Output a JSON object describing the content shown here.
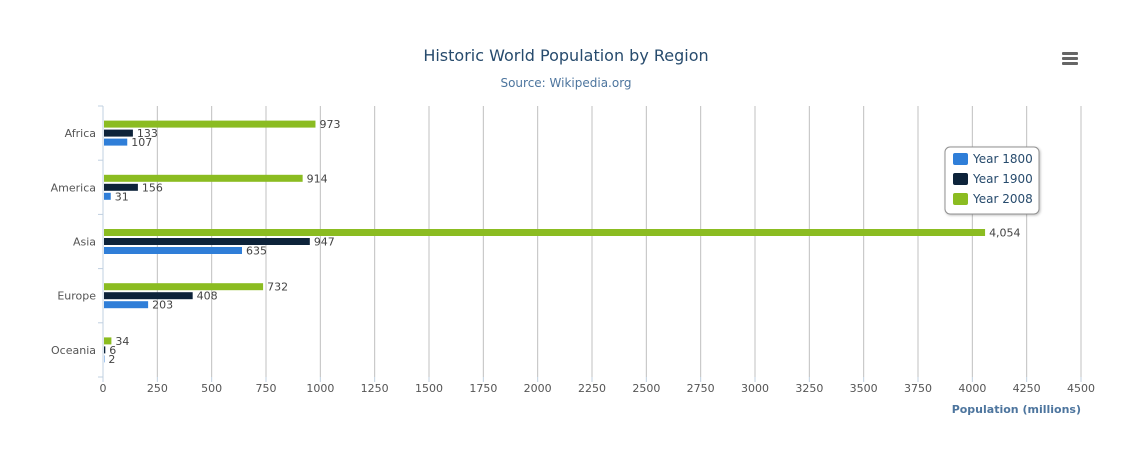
{
  "chart_data": {
    "type": "bar",
    "orientation": "horizontal",
    "title": "Historic World Population by Region",
    "subtitle": "Source: Wikipedia.org",
    "categories": [
      "Africa",
      "America",
      "Asia",
      "Europe",
      "Oceania"
    ],
    "series": [
      {
        "name": "Year 1800",
        "color": "#2f7ed8",
        "values": [
          107,
          31,
          635,
          203,
          2
        ],
        "labels": [
          "107",
          "31",
          "635",
          "203",
          "2"
        ]
      },
      {
        "name": "Year 1900",
        "color": "#0d233a",
        "values": [
          133,
          156,
          947,
          408,
          6
        ],
        "labels": [
          "133",
          "156",
          "947",
          "408",
          "6"
        ]
      },
      {
        "name": "Year 2008",
        "color": "#8bbc21",
        "values": [
          973,
          914,
          4054,
          732,
          34
        ],
        "labels": [
          "973",
          "914",
          "4,054",
          "732",
          "34"
        ]
      }
    ],
    "xlabel": "",
    "ylabel": "Population (millions)",
    "ylim": [
      0,
      4500
    ],
    "ticks": [
      "0",
      "250",
      "500",
      "750",
      "1000",
      "1250",
      "1500",
      "1750",
      "2000",
      "2250",
      "2500",
      "2750",
      "3000",
      "3250",
      "3500",
      "3750",
      "4000",
      "4250",
      "4500"
    ],
    "grid": true,
    "legend_position": "right"
  },
  "menu": {
    "icon": "menu-icon"
  }
}
